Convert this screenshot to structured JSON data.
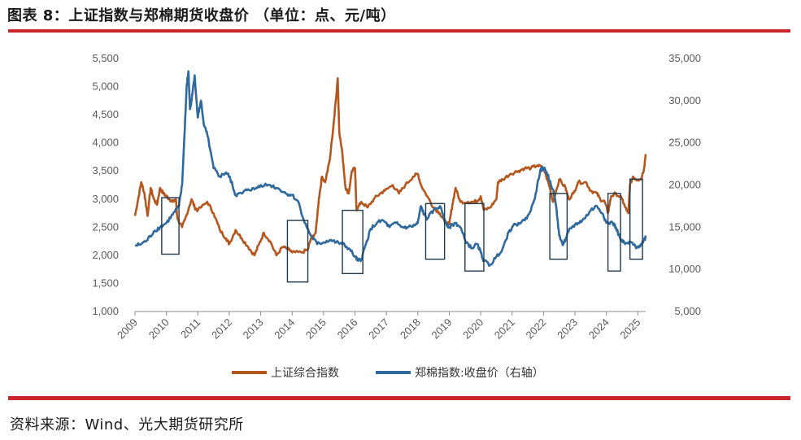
{
  "header": {
    "title": "图表 8：上证指数与郑棉期货收盘价 （单位：点、元/吨）"
  },
  "footer": {
    "source": "资料来源：Wind、光大期货研究所"
  },
  "colors": {
    "accent_rule": "#c9252c",
    "series_sh": "#b5561c",
    "series_cf": "#2e6a9e",
    "box": "#1f3a4d",
    "axis": "#8c8c8c"
  },
  "chart_data": {
    "type": "line",
    "legend_position": "bottom",
    "grid": false,
    "x_ticks": [
      "2009",
      "2010",
      "2011",
      "2012",
      "2013",
      "2014",
      "2015",
      "2016",
      "2017",
      "2018",
      "2019",
      "2020",
      "2021",
      "2022",
      "2023",
      "2024",
      "2025"
    ],
    "x_range": [
      2009.0,
      2025.25
    ],
    "y_left": {
      "min": 1000,
      "max": 5500,
      "ticks": [
        "1,000",
        "1,500",
        "2,000",
        "2,500",
        "3,000",
        "3,500",
        "4,000",
        "4,500",
        "5,000",
        "5,500"
      ]
    },
    "y_right": {
      "min": 5000,
      "max": 35000,
      "ticks": [
        "5,000",
        "10,000",
        "15,000",
        "20,000",
        "25,000",
        "30,000",
        "35,000"
      ]
    },
    "series": [
      {
        "name": "上证综合指数",
        "axis": "left",
        "points": [
          [
            2009.0,
            2700
          ],
          [
            2009.1,
            3000
          ],
          [
            2009.2,
            3300
          ],
          [
            2009.3,
            3100
          ],
          [
            2009.4,
            2700
          ],
          [
            2009.5,
            3200
          ],
          [
            2009.6,
            3000
          ],
          [
            2009.7,
            2900
          ],
          [
            2009.8,
            3200
          ],
          [
            2009.9,
            3100
          ],
          [
            2010.0,
            3050
          ],
          [
            2010.1,
            3000
          ],
          [
            2010.2,
            2950
          ],
          [
            2010.3,
            3000
          ],
          [
            2010.35,
            2650
          ],
          [
            2010.5,
            2500
          ],
          [
            2010.6,
            2650
          ],
          [
            2010.8,
            3000
          ],
          [
            2010.9,
            2850
          ],
          [
            2011.0,
            2800
          ],
          [
            2011.3,
            2950
          ],
          [
            2011.5,
            2750
          ],
          [
            2011.7,
            2450
          ],
          [
            2011.9,
            2300
          ],
          [
            2012.0,
            2200
          ],
          [
            2012.2,
            2450
          ],
          [
            2012.4,
            2300
          ],
          [
            2012.6,
            2150
          ],
          [
            2012.8,
            2000
          ],
          [
            2012.95,
            2200
          ],
          [
            2013.1,
            2400
          ],
          [
            2013.3,
            2250
          ],
          [
            2013.5,
            2000
          ],
          [
            2013.7,
            2150
          ],
          [
            2013.9,
            2100
          ],
          [
            2014.0,
            2050
          ],
          [
            2014.3,
            2050
          ],
          [
            2014.5,
            2100
          ],
          [
            2014.6,
            2300
          ],
          [
            2014.75,
            2400
          ],
          [
            2014.85,
            3000
          ],
          [
            2014.95,
            3400
          ],
          [
            2015.05,
            3300
          ],
          [
            2015.2,
            3700
          ],
          [
            2015.35,
            4500
          ],
          [
            2015.45,
            5150
          ],
          [
            2015.5,
            4200
          ],
          [
            2015.6,
            3800
          ],
          [
            2015.7,
            3200
          ],
          [
            2015.8,
            3100
          ],
          [
            2015.9,
            3500
          ],
          [
            2016.0,
            3550
          ],
          [
            2016.05,
            2800
          ],
          [
            2016.2,
            2950
          ],
          [
            2016.4,
            2850
          ],
          [
            2016.6,
            3000
          ],
          [
            2016.8,
            3100
          ],
          [
            2016.95,
            3150
          ],
          [
            2017.2,
            3250
          ],
          [
            2017.4,
            3100
          ],
          [
            2017.6,
            3250
          ],
          [
            2017.85,
            3400
          ],
          [
            2018.0,
            3450
          ],
          [
            2018.1,
            3250
          ],
          [
            2018.3,
            3050
          ],
          [
            2018.5,
            2850
          ],
          [
            2018.7,
            2750
          ],
          [
            2018.85,
            2600
          ],
          [
            2019.0,
            2550
          ],
          [
            2019.1,
            2900
          ],
          [
            2019.2,
            3200
          ],
          [
            2019.35,
            2950
          ],
          [
            2019.6,
            2950
          ],
          [
            2019.8,
            2950
          ],
          [
            2019.95,
            3000
          ],
          [
            2020.0,
            3050
          ],
          [
            2020.1,
            2800
          ],
          [
            2020.3,
            2850
          ],
          [
            2020.5,
            3000
          ],
          [
            2020.55,
            3300
          ],
          [
            2020.7,
            3350
          ],
          [
            2020.95,
            3450
          ],
          [
            2021.2,
            3500
          ],
          [
            2021.4,
            3550
          ],
          [
            2021.6,
            3550
          ],
          [
            2021.8,
            3600
          ],
          [
            2022.0,
            3550
          ],
          [
            2022.2,
            3200
          ],
          [
            2022.3,
            2950
          ],
          [
            2022.5,
            3350
          ],
          [
            2022.7,
            3200
          ],
          [
            2022.8,
            3000
          ],
          [
            2022.95,
            3100
          ],
          [
            2023.1,
            3300
          ],
          [
            2023.35,
            3300
          ],
          [
            2023.5,
            3150
          ],
          [
            2023.7,
            3100
          ],
          [
            2023.8,
            3000
          ],
          [
            2023.95,
            2950
          ],
          [
            2024.05,
            2750
          ],
          [
            2024.15,
            3050
          ],
          [
            2024.3,
            3100
          ],
          [
            2024.5,
            3000
          ],
          [
            2024.6,
            2850
          ],
          [
            2024.7,
            2750
          ],
          [
            2024.75,
            3250
          ],
          [
            2024.85,
            3400
          ],
          [
            2024.95,
            3350
          ],
          [
            2025.1,
            3350
          ],
          [
            2025.2,
            3550
          ],
          [
            2025.25,
            3800
          ]
        ]
      },
      {
        "name": "郑棉指数:收盘价（右轴）",
        "axis": "right",
        "points": [
          [
            2009.0,
            12800
          ],
          [
            2009.2,
            13000
          ],
          [
            2009.4,
            13500
          ],
          [
            2009.6,
            14500
          ],
          [
            2009.8,
            15000
          ],
          [
            2010.0,
            15500
          ],
          [
            2010.2,
            16500
          ],
          [
            2010.4,
            17500
          ],
          [
            2010.5,
            20000
          ],
          [
            2010.55,
            24000
          ],
          [
            2010.6,
            28000
          ],
          [
            2010.65,
            32000
          ],
          [
            2010.7,
            33500
          ],
          [
            2010.75,
            29000
          ],
          [
            2010.8,
            30000
          ],
          [
            2010.9,
            33000
          ],
          [
            2011.0,
            28000
          ],
          [
            2011.1,
            30000
          ],
          [
            2011.2,
            27000
          ],
          [
            2011.3,
            26000
          ],
          [
            2011.4,
            24000
          ],
          [
            2011.5,
            22000
          ],
          [
            2011.7,
            21000
          ],
          [
            2011.9,
            21500
          ],
          [
            2012.0,
            21000
          ],
          [
            2012.1,
            20000
          ],
          [
            2012.2,
            18800
          ],
          [
            2012.4,
            19000
          ],
          [
            2012.6,
            19500
          ],
          [
            2012.8,
            19500
          ],
          [
            2013.0,
            20000
          ],
          [
            2013.3,
            20000
          ],
          [
            2013.6,
            19500
          ],
          [
            2013.8,
            19000
          ],
          [
            2014.0,
            18800
          ],
          [
            2014.2,
            18000
          ],
          [
            2014.4,
            15500
          ],
          [
            2014.6,
            14000
          ],
          [
            2014.8,
            13000
          ],
          [
            2015.0,
            13200
          ],
          [
            2015.2,
            13500
          ],
          [
            2015.4,
            13200
          ],
          [
            2015.6,
            13000
          ],
          [
            2015.8,
            12500
          ],
          [
            2016.0,
            11500
          ],
          [
            2016.1,
            11000
          ],
          [
            2016.2,
            11200
          ],
          [
            2016.35,
            13000
          ],
          [
            2016.5,
            14800
          ],
          [
            2016.7,
            15500
          ],
          [
            2016.9,
            15800
          ],
          [
            2017.1,
            15000
          ],
          [
            2017.3,
            15500
          ],
          [
            2017.5,
            15000
          ],
          [
            2017.7,
            15000
          ],
          [
            2017.9,
            15200
          ],
          [
            2018.0,
            15500
          ],
          [
            2018.1,
            17500
          ],
          [
            2018.2,
            16500
          ],
          [
            2018.3,
            16000
          ],
          [
            2018.5,
            17000
          ],
          [
            2018.7,
            17500
          ],
          [
            2018.9,
            15500
          ],
          [
            2019.0,
            15000
          ],
          [
            2019.2,
            15500
          ],
          [
            2019.35,
            15000
          ],
          [
            2019.5,
            13500
          ],
          [
            2019.7,
            12500
          ],
          [
            2019.9,
            13000
          ],
          [
            2020.0,
            12000
          ],
          [
            2020.1,
            11000
          ],
          [
            2020.3,
            10500
          ],
          [
            2020.5,
            11500
          ],
          [
            2020.7,
            12500
          ],
          [
            2020.9,
            14500
          ],
          [
            2021.0,
            15000
          ],
          [
            2021.2,
            15500
          ],
          [
            2021.4,
            15800
          ],
          [
            2021.6,
            17000
          ],
          [
            2021.75,
            19000
          ],
          [
            2021.9,
            21800
          ],
          [
            2022.0,
            22000
          ],
          [
            2022.1,
            21500
          ],
          [
            2022.2,
            20500
          ],
          [
            2022.3,
            19500
          ],
          [
            2022.4,
            17500
          ],
          [
            2022.5,
            14000
          ],
          [
            2022.6,
            13000
          ],
          [
            2022.7,
            13500
          ],
          [
            2022.8,
            14500
          ],
          [
            2022.9,
            15000
          ],
          [
            2023.1,
            15500
          ],
          [
            2023.3,
            16000
          ],
          [
            2023.5,
            17000
          ],
          [
            2023.7,
            17500
          ],
          [
            2023.9,
            16500
          ],
          [
            2024.0,
            15500
          ],
          [
            2024.2,
            15500
          ],
          [
            2024.3,
            15000
          ],
          [
            2024.45,
            13500
          ],
          [
            2024.6,
            13000
          ],
          [
            2024.8,
            13200
          ],
          [
            2024.95,
            12500
          ],
          [
            2025.1,
            13000
          ],
          [
            2025.2,
            13500
          ],
          [
            2025.25,
            13800
          ]
        ]
      }
    ],
    "highlight_boxes": [
      {
        "x": [
          2009.85,
          2010.4
        ],
        "y_right": [
          11800,
          18500
        ]
      },
      {
        "x": [
          2013.85,
          2014.5
        ],
        "y_right": [
          8500,
          15800
        ]
      },
      {
        "x": [
          2015.6,
          2016.25
        ],
        "y_right": [
          9500,
          17000
        ]
      },
      {
        "x": [
          2018.25,
          2018.85
        ],
        "y_right": [
          11200,
          17800
        ]
      },
      {
        "x": [
          2019.5,
          2020.1
        ],
        "y_right": [
          9800,
          17800
        ]
      },
      {
        "x": [
          2022.2,
          2022.75
        ],
        "y_right": [
          11200,
          19000
        ]
      },
      {
        "x": [
          2024.05,
          2024.45
        ],
        "y_right": [
          9800,
          19000
        ]
      },
      {
        "x": [
          2024.75,
          2025.15
        ],
        "y_right": [
          11200,
          20700
        ]
      }
    ]
  }
}
